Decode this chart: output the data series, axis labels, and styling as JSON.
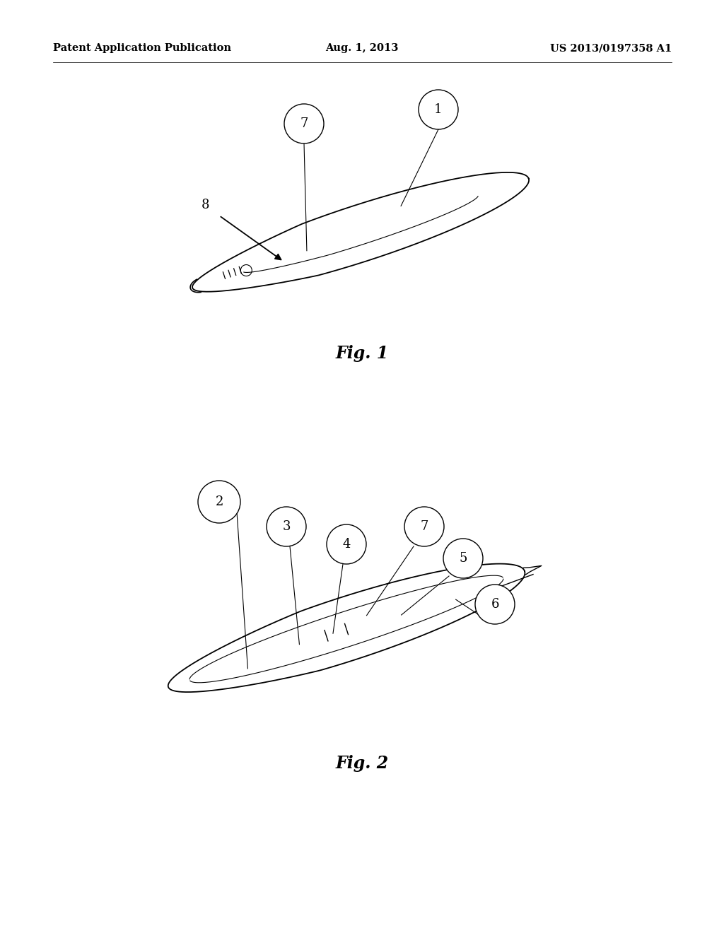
{
  "background_color": "#ffffff",
  "header": {
    "left": "Patent Application Publication",
    "center": "Aug. 1, 2013",
    "right": "US 2013/0197358 A1",
    "fontsize": 10.5
  },
  "fig1": {
    "caption": "Fig. 1",
    "caption_fontsize": 17
  },
  "fig2": {
    "caption": "Fig. 2",
    "caption_fontsize": 17
  }
}
